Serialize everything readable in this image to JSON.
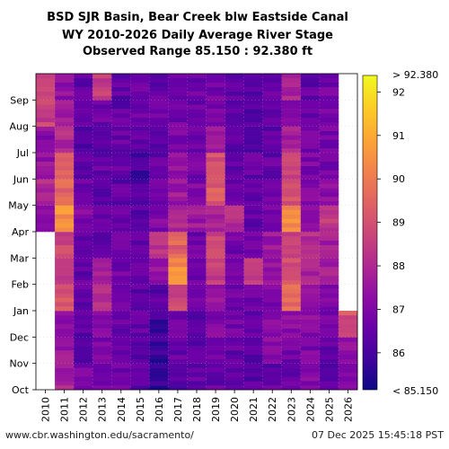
{
  "chart_data": {
    "type": "heatmap",
    "title_lines": [
      "BSD SJR Basin, Bear Creek blw Eastside Canal",
      "WY 2010-2026 Daily Average River Stage",
      "Observed Range 85.150 : 92.380 ft"
    ],
    "x_categories": [
      "2010",
      "2011",
      "2012",
      "2013",
      "2014",
      "2015",
      "2016",
      "2017",
      "2018",
      "2019",
      "2020",
      "2021",
      "2022",
      "2023",
      "2024",
      "2025",
      "2026"
    ],
    "y_months": [
      "Oct",
      "Nov",
      "Dec",
      "Jan",
      "Feb",
      "Mar",
      "Apr",
      "May",
      "Jun",
      "Jul",
      "Aug",
      "Sep"
    ],
    "colorbar": {
      "ticks": [
        86,
        87,
        88,
        89,
        90,
        91,
        92
      ],
      "min_label": "< 85.150",
      "max_label": "> 92.380",
      "range": [
        85.15,
        92.38
      ],
      "colormap": "plasma"
    },
    "approx_month_values": [
      [
        null,
        null,
        null,
        null,
        null,
        null,
        87.0,
        88.0,
        87.5,
        87.2,
        88.6,
        88.5
      ],
      [
        87.8,
        87.6,
        87.3,
        89.0,
        88.5,
        88.7,
        90.5,
        89.5,
        89.3,
        88.0,
        87.8,
        87.3
      ],
      [
        86.8,
        86.5,
        86.3,
        86.4,
        86.5,
        86.3,
        87.0,
        86.8,
        86.4,
        86.2,
        86.3,
        86.4
      ],
      [
        86.8,
        87.0,
        87.0,
        88.3,
        88.0,
        86.5,
        86.4,
        86.3,
        86.5,
        86.4,
        86.6,
        88.5
      ],
      [
        86.8,
        86.7,
        86.6,
        86.6,
        86.8,
        86.8,
        86.6,
        86.4,
        86.5,
        86.6,
        86.5,
        86.4
      ],
      [
        86.4,
        86.4,
        86.4,
        86.3,
        86.5,
        86.6,
        86.3,
        86.3,
        86.0,
        86.4,
        86.6,
        86.8
      ],
      [
        85.6,
        85.8,
        85.9,
        86.4,
        87.5,
        88.4,
        87.0,
        86.6,
        86.5,
        86.4,
        86.6,
        86.5
      ],
      [
        86.3,
        86.5,
        86.8,
        88.8,
        90.4,
        89.4,
        88.0,
        87.6,
        87.3,
        87.0,
        86.8,
        86.8
      ],
      [
        86.4,
        86.3,
        86.4,
        86.6,
        86.8,
        86.7,
        87.6,
        87.0,
        86.8,
        86.8,
        86.6,
        86.6
      ],
      [
        86.6,
        86.7,
        87.0,
        87.6,
        88.5,
        88.6,
        88.0,
        89.3,
        89.0,
        87.6,
        87.0,
        86.8
      ],
      [
        86.6,
        86.5,
        86.8,
        86.8,
        86.9,
        86.8,
        88.2,
        86.6,
        86.4,
        86.3,
        86.4,
        86.5
      ],
      [
        86.3,
        86.4,
        86.6,
        86.6,
        88.3,
        86.7,
        86.5,
        86.3,
        86.5,
        86.3,
        86.3,
        86.3
      ],
      [
        86.5,
        87.2,
        87.2,
        87.0,
        87.3,
        87.5,
        87.0,
        86.7,
        86.5,
        86.4,
        86.4,
        86.5
      ],
      [
        86.5,
        86.8,
        87.2,
        89.6,
        89.0,
        88.5,
        90.4,
        89.0,
        88.5,
        87.8,
        87.3,
        87.8
      ],
      [
        87.0,
        87.0,
        87.2,
        87.5,
        87.8,
        88.1,
        87.3,
        87.2,
        87.0,
        86.8,
        86.7,
        86.5
      ],
      [
        86.4,
        86.4,
        86.7,
        87.0,
        87.8,
        87.8,
        88.3,
        87.2,
        86.9,
        86.8,
        86.8,
        86.8
      ],
      [
        86.8,
        87.4,
        89.0,
        null,
        null,
        null,
        null,
        null,
        null,
        null,
        null,
        null
      ]
    ]
  },
  "footer": {
    "left": "www.cbr.washington.edu/sacramento/",
    "right": "07 Dec 2025 15:45:18 PST"
  }
}
